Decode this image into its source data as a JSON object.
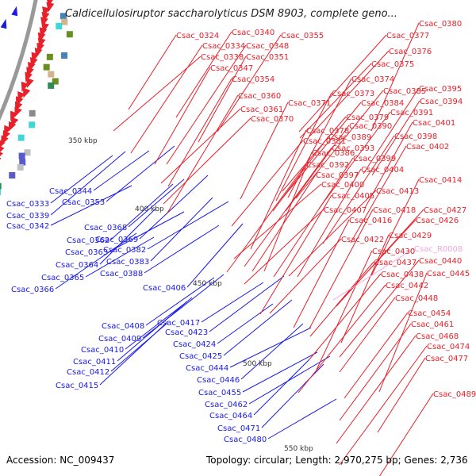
{
  "title": "Caldicellulosiruptor saccharolyticus DSM 8903, complete geno...",
  "accession": "Accession: NC_009437",
  "topology": "Topology: circular; Length: 2,970,275 bp; Genes: 2,736",
  "colors": {
    "forward": "#e8202a",
    "reverse": "#1a1ae6",
    "rna": "#f2a6e0",
    "backbone": "#999999"
  },
  "scale_labels": [
    "350 kbp",
    "400 kbp",
    "450 kbp",
    "500 kbp",
    "550 kbp"
  ],
  "genes_reverse": [
    "Csac_0344",
    "Csac_0333",
    "Csac_0353",
    "Csac_0339",
    "Csac_0342",
    "Csac_0368",
    "Csac_0362",
    "Csac_0369",
    "Csac_0363",
    "Csac_0382",
    "Csac_0364",
    "Csac_0383",
    "Csac_0365",
    "Csac_0388",
    "Csac_0366",
    "Csac_0406",
    "Csac_0417",
    "Csac_0408",
    "Csac_0423",
    "Csac_0409",
    "Csac_0424",
    "Csac_0410",
    "Csac_0425",
    "Csac_0411",
    "Csac_0444",
    "Csac_0412",
    "Csac_0446",
    "Csac_0415",
    "Csac_0455",
    "Csac_0462",
    "Csac_0464",
    "Csac_0471",
    "Csac_0480"
  ],
  "genes_forward": [
    "Csac_0324",
    "Csac_0340",
    "Csac_0355",
    "Csac_0334",
    "Csac_0348",
    "Csac_0338",
    "Csac_0351",
    "Csac_0347",
    "Csac_0354",
    "Csac_0360",
    "Csac_0361",
    "Csac_0370",
    "Csac_0371",
    "Csac_0373",
    "Csac_0374",
    "Csac_0375",
    "Csac_0376",
    "Csac_0377",
    "Csac_0380",
    "Csac_0378",
    "Csac_0379",
    "Csac_0381",
    "Csac_0384",
    "Csac_0385",
    "Csac_0386",
    "Csac_0389",
    "Csac_0390",
    "Csac_0391",
    "Csac_0392",
    "Csac_0393",
    "Csac_0394",
    "Csac_0395",
    "Csac_0397",
    "Csac_0398",
    "Csac_0399",
    "Csac_0400",
    "Csac_0401",
    "Csac_0402",
    "Csac_0404",
    "Csac_0405",
    "Csac_0407",
    "Csac_0413",
    "Csac_0414",
    "Csac_0416",
    "Csac_0418",
    "Csac_0422",
    "Csac_0426",
    "Csac_0427",
    "Csac_0429",
    "Csac_0430",
    "Csac_0437",
    "Csac_0438",
    "Csac_0440",
    "Csac_0442",
    "Csac_0445",
    "Csac_0448",
    "Csac_0454",
    "Csac_0461",
    "Csac_0468",
    "Csac_0474",
    "Csac_0477",
    "Csac_0489"
  ],
  "genes_rna": [
    "Csac_R0008"
  ]
}
